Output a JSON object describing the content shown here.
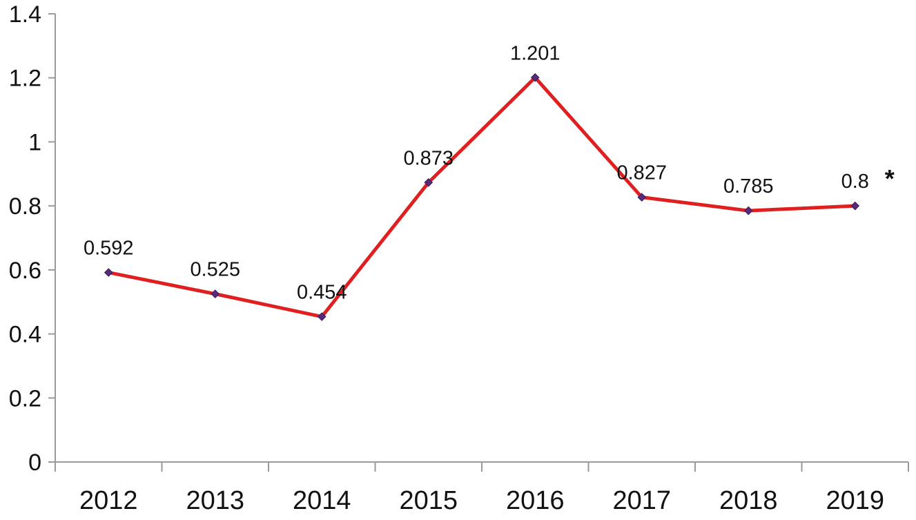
{
  "chart_data": {
    "type": "line",
    "title": "",
    "xlabel": "",
    "ylabel": "",
    "categories": [
      "2012",
      "2013",
      "2014",
      "2015",
      "2016",
      "2017",
      "2018",
      "2019"
    ],
    "series": [
      {
        "values": [
          0.592,
          0.525,
          0.454,
          0.873,
          1.201,
          0.827,
          0.785,
          0.8
        ],
        "data_labels": [
          "0.592",
          "0.525",
          "0.454",
          "0.873",
          "1.201",
          "0.827",
          "0.785",
          "0.8"
        ],
        "color": "#e02020",
        "marker_color": "#5a2a7a"
      }
    ],
    "ylim": [
      0,
      1.4
    ],
    "yticks": [
      0,
      0.2,
      0.4,
      0.6,
      0.8,
      1,
      1.2,
      1.4
    ],
    "ytick_labels": [
      "0",
      "0.2",
      "0.4",
      "0.6",
      "0.8",
      "1",
      "1.2",
      "1.4"
    ],
    "grid": false,
    "legend": "none",
    "annotations": [
      {
        "text": "*",
        "category": "2019"
      }
    ]
  }
}
